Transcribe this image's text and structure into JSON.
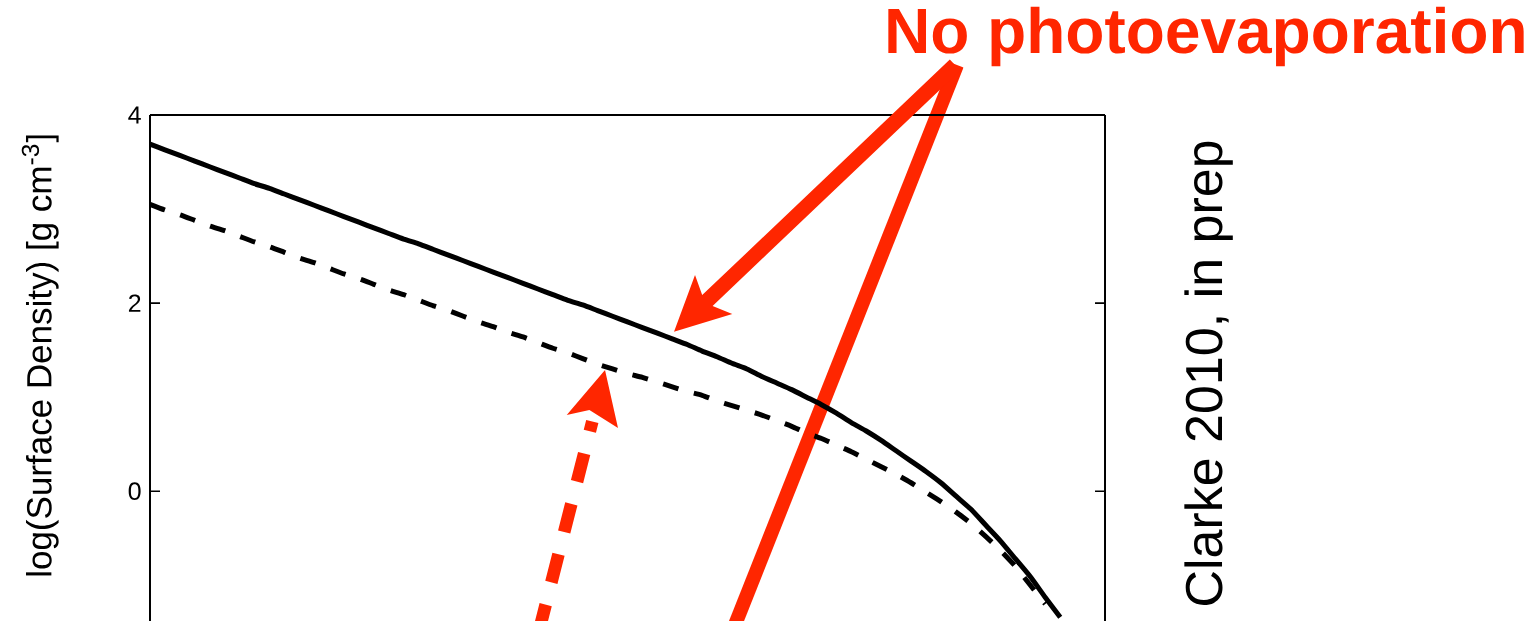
{
  "chart_data": {
    "type": "line",
    "ylabel": "log(Surface Density) [g cm$^{-3}$]",
    "annotations": [
      "No photoevaporation",
      "Clarke 2010, in prep"
    ],
    "categories": [
      null,
      null,
      null,
      null,
      null,
      null,
      null,
      null,
      null,
      null,
      null,
      null,
      null,
      null,
      null,
      null,
      null,
      null,
      null,
      null,
      null,
      null,
      null,
      null,
      null,
      null,
      null,
      null,
      null,
      null,
      null,
      null,
      null,
      null,
      null,
      null,
      null,
      null,
      null,
      null,
      null,
      null,
      null,
      null,
      null,
      null,
      null,
      null,
      null,
      null,
      null,
      null,
      null,
      null,
      null,
      null,
      null,
      null,
      null,
      null,
      null,
      null,
      null,
      null,
      null
    ],
    "series": [
      {
        "color": "#000000",
        "line_style": "solid",
        "values": [
          3.69,
          3.63,
          3.57,
          3.51,
          3.45,
          3.39,
          3.33,
          3.27,
          3.22,
          3.16,
          3.1,
          3.04,
          2.98,
          2.92,
          2.86,
          2.8,
          2.74,
          2.68,
          2.63,
          2.57,
          2.51,
          2.45,
          2.39,
          2.33,
          2.27,
          2.21,
          2.15,
          2.09,
          2.03,
          1.98,
          1.92,
          1.86,
          1.8,
          1.74,
          1.68,
          1.62,
          1.56,
          1.49,
          1.43,
          1.36,
          1.3,
          1.22,
          1.15,
          1.08,
          1.0,
          0.92,
          0.83,
          0.73,
          0.64,
          0.54,
          0.43,
          0.32,
          0.21,
          0.09,
          -0.05,
          -0.19,
          -0.36,
          -0.53,
          -0.72,
          -0.91,
          -1.13,
          -1.34,
          null,
          null,
          null
        ]
      },
      {
        "color": "#000000",
        "line_style": "dashed",
        "values": [
          3.05,
          2.99,
          2.94,
          2.88,
          2.82,
          2.77,
          2.71,
          2.65,
          2.6,
          2.54,
          2.48,
          2.43,
          2.37,
          2.31,
          2.26,
          2.2,
          2.14,
          2.09,
          2.03,
          1.97,
          1.92,
          1.86,
          1.8,
          1.75,
          1.69,
          1.64,
          1.58,
          1.52,
          1.47,
          1.41,
          1.35,
          1.3,
          1.25,
          1.21,
          1.16,
          1.11,
          1.06,
          1.02,
          0.96,
          0.91,
          0.86,
          0.81,
          0.75,
          0.69,
          0.62,
          0.56,
          0.49,
          0.42,
          0.34,
          0.26,
          0.18,
          0.09,
          -0.01,
          -0.11,
          -0.22,
          -0.34,
          -0.48,
          -0.63,
          -0.8,
          -1.0,
          -1.2,
          null,
          null,
          null,
          null
        ]
      }
    ],
    "ylim": [
      -1.38,
      4
    ],
    "yticks": [
      0,
      2,
      4
    ],
    "tick_labels": "y"
  }
}
